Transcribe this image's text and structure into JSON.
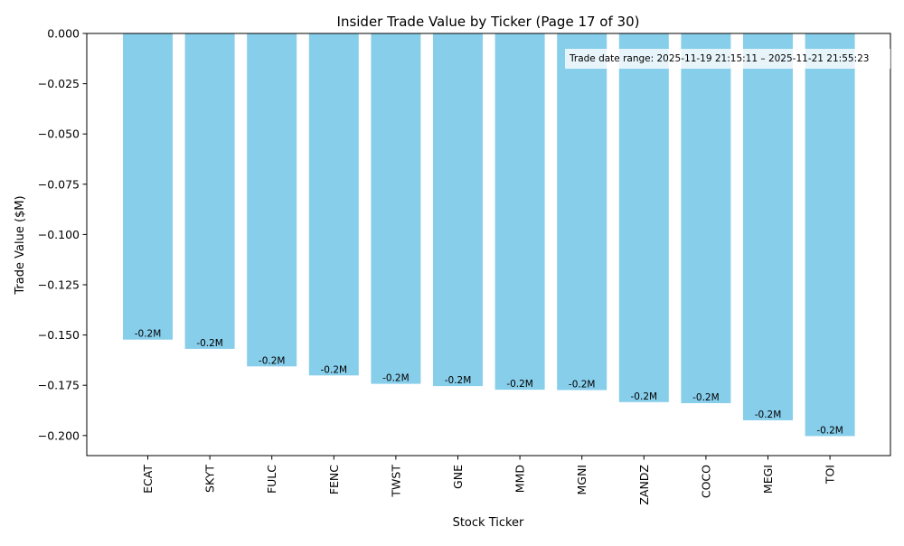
{
  "chart_data": {
    "type": "bar",
    "title": "Insider Trade Value by Ticker (Page 17 of 30)",
    "xlabel": "Stock Ticker",
    "ylabel": "Trade Value ($M)",
    "categories": [
      "ECAT",
      "SKYT",
      "FULC",
      "FENC",
      "TWST",
      "GNE",
      "MMD",
      "MGNI",
      "ZANDZ",
      "COCO",
      "MEGI",
      "TOI"
    ],
    "values": [
      -0.1523,
      -0.1569,
      -0.1656,
      -0.1701,
      -0.1743,
      -0.1754,
      -0.1772,
      -0.1774,
      -0.1834,
      -0.1839,
      -0.1924,
      -0.2003
    ],
    "data_labels": [
      "-0.2M",
      "-0.2M",
      "-0.2M",
      "-0.2M",
      "-0.2M",
      "-0.2M",
      "-0.2M",
      "-0.2M",
      "-0.2M",
      "-0.2M",
      "-0.2M",
      "-0.2M"
    ],
    "ylim": [
      -0.21,
      0.0
    ],
    "yticks": [
      0.0,
      -0.025,
      -0.05,
      -0.075,
      -0.1,
      -0.125,
      -0.15,
      -0.175,
      -0.2
    ],
    "ytick_labels": [
      "0.000",
      "−0.025",
      "−0.050",
      "−0.075",
      "−0.100",
      "−0.125",
      "−0.150",
      "−0.175",
      "−0.200"
    ],
    "bar_color": "#87CEEB",
    "grid": false,
    "annotation": "Trade date range: 2025-11-19 21:15:11 – 2025-11-21 21:55:23"
  }
}
